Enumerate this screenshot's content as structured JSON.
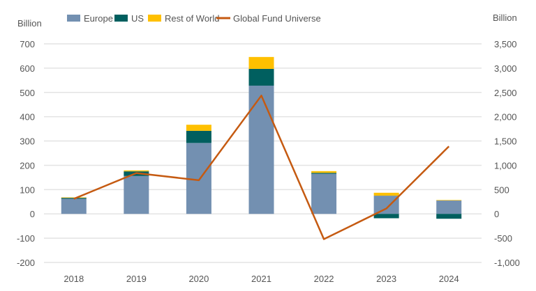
{
  "chart_data": {
    "type": "bar",
    "stacked": true,
    "categories": [
      "2018",
      "2019",
      "2020",
      "2021",
      "2022",
      "2023",
      "2024"
    ],
    "left_axis": {
      "label": "Billion",
      "ylim": [
        -200,
        700
      ],
      "ticks": [
        "700",
        "600",
        "500",
        "400",
        "300",
        "200",
        "100",
        "0",
        "-100",
        "-200"
      ]
    },
    "right_axis": {
      "label": "Billion",
      "ylim": [
        -1000,
        3500
      ],
      "ticks": [
        "3,500",
        "3,000",
        "2,500",
        "2,000",
        "1,500",
        "1,000",
        "500",
        "0",
        "-500",
        "-1,000"
      ]
    },
    "series": [
      {
        "name": "Europe",
        "type": "bar",
        "axis": "left",
        "color": "#7390B1",
        "values": [
          62,
          156,
          292,
          528,
          165,
          75,
          55
        ]
      },
      {
        "name": "US",
        "type": "bar",
        "axis": "left",
        "color": "#005F5F",
        "values": [
          4,
          19,
          50,
          69,
          4,
          -18,
          -20
        ]
      },
      {
        "name": "Rest of World",
        "type": "bar",
        "axis": "left",
        "color": "#FFC000",
        "values": [
          2,
          4,
          25,
          49,
          7,
          12,
          2
        ]
      },
      {
        "name": "Global Fund Universe",
        "type": "line",
        "axis": "right",
        "color": "#C55A11",
        "values": [
          310,
          840,
          693,
          2435,
          -520,
          110,
          1390
        ]
      }
    ],
    "grid": true,
    "legend_position": "top"
  }
}
